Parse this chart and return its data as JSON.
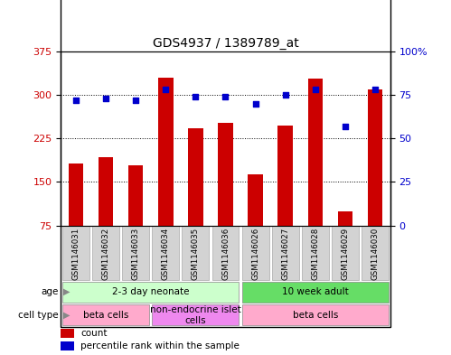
{
  "title": "GDS4937 / 1389789_at",
  "samples": [
    "GSM1146031",
    "GSM1146032",
    "GSM1146033",
    "GSM1146034",
    "GSM1146035",
    "GSM1146036",
    "GSM1146026",
    "GSM1146027",
    "GSM1146028",
    "GSM1146029",
    "GSM1146030"
  ],
  "counts": [
    182,
    193,
    178,
    330,
    242,
    252,
    163,
    247,
    328,
    100,
    310
  ],
  "percentiles": [
    72,
    73,
    72,
    78,
    74,
    74,
    70,
    75,
    78,
    57,
    78
  ],
  "ylim_left": [
    75,
    375
  ],
  "ylim_right": [
    0,
    100
  ],
  "yticks_left": [
    75,
    150,
    225,
    300,
    375
  ],
  "yticks_right": [
    0,
    25,
    50,
    75,
    100
  ],
  "bar_color": "#cc0000",
  "dot_color": "#0000cc",
  "grid_color": "#000000",
  "age_groups": [
    {
      "label": "2-3 day neonate",
      "start": 0,
      "end": 5,
      "color": "#ccffcc"
    },
    {
      "label": "10 week adult",
      "start": 6,
      "end": 10,
      "color": "#66dd66"
    }
  ],
  "cell_type_groups": [
    {
      "label": "beta cells",
      "start": 0,
      "end": 2,
      "color": "#ffaacc"
    },
    {
      "label": "non-endocrine islet\ncells",
      "start": 3,
      "end": 5,
      "color": "#ee88ee"
    },
    {
      "label": "beta cells",
      "start": 6,
      "end": 10,
      "color": "#ffaacc"
    }
  ],
  "left_axis_color": "#cc0000",
  "right_axis_color": "#0000cc",
  "sample_box_color": "#d3d3d3",
  "sample_box_edge": "#aaaaaa"
}
